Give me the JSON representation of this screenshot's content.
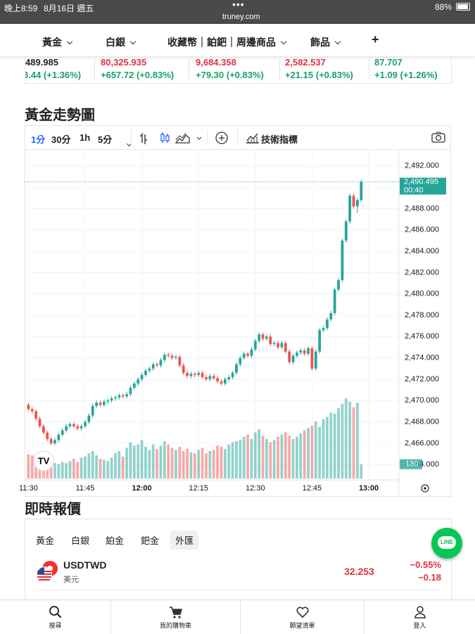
{
  "status_bar": {
    "time": "晚上8:59",
    "date": "8月16日 週五",
    "url": "truney.com",
    "battery": "88%"
  },
  "nav": [
    "黃金",
    "白銀",
    "收藏幣｜鉑鈀｜周邊商品",
    "飾品",
    "+"
  ],
  "tickers": [
    {
      "price": "489.985",
      "change": "3.44 (+1.36%)"
    },
    {
      "price": "80,325.935",
      "change": "+657.72 (+0.83%)"
    },
    {
      "price": "9,684.358",
      "change": "+79.30 (+0.83%)"
    },
    {
      "price": "2,582.537",
      "change": "+21.15 (+0.83%)"
    },
    {
      "price": "87.707",
      "change": "+1.09 (+1.26%)"
    }
  ],
  "chart_title": "黃金走勢圖",
  "toolbar": {
    "intervals": [
      "1分",
      "30分",
      "1h",
      "5分"
    ],
    "indicators": "技術指標"
  },
  "chart_data": {
    "type": "candlestick",
    "x": [
      "11:30",
      "11:31",
      "11:32",
      "11:33",
      "11:34",
      "11:35",
      "11:36",
      "11:37",
      "11:38",
      "11:39",
      "11:40",
      "11:41",
      "11:42",
      "11:43",
      "11:44",
      "11:45",
      "11:46",
      "11:47",
      "11:48",
      "11:49",
      "11:50",
      "11:51",
      "11:52",
      "11:53",
      "11:54",
      "11:55",
      "11:56",
      "11:57",
      "11:58",
      "11:59",
      "12:00",
      "12:01",
      "12:02",
      "12:03",
      "12:04",
      "12:05",
      "12:06",
      "12:07",
      "12:08",
      "12:09",
      "12:10",
      "12:11",
      "12:12",
      "12:13",
      "12:14",
      "12:15",
      "12:16",
      "12:17",
      "12:18",
      "12:19",
      "12:20",
      "12:21",
      "12:22",
      "12:23",
      "12:24",
      "12:25",
      "12:26",
      "12:27",
      "12:28",
      "12:29",
      "12:30",
      "12:31",
      "12:32",
      "12:33",
      "12:34",
      "12:35",
      "12:36",
      "12:37",
      "12:38",
      "12:39",
      "12:40",
      "12:41",
      "12:42",
      "12:43",
      "12:44",
      "12:45",
      "12:46",
      "12:47",
      "12:48",
      "12:49",
      "12:50",
      "12:51",
      "12:52",
      "12:53",
      "12:54",
      "12:55",
      "12:56",
      "12:57",
      "12:58"
    ],
    "open": [
      2469.6,
      2469.2,
      2469.0,
      2468.3,
      2467.6,
      2467.0,
      2466.4,
      2466.0,
      2466.3,
      2466.8,
      2467.2,
      2467.6,
      2467.8,
      2467.6,
      2467.4,
      2467.6,
      2468.0,
      2468.6,
      2469.5,
      2469.8,
      2469.6,
      2469.9,
      2470.0,
      2470.2,
      2470.3,
      2470.5,
      2470.4,
      2470.6,
      2471.2,
      2471.6,
      2472.0,
      2472.4,
      2472.8,
      2473.0,
      2473.4,
      2473.3,
      2473.8,
      2474.3,
      2474.2,
      2474.0,
      2474.1,
      2473.3,
      2472.6,
      2472.3,
      2472.5,
      2472.4,
      2472.6,
      2472.2,
      2472.0,
      2472.3,
      2472.1,
      2471.8,
      2471.6,
      2472.0,
      2472.2,
      2472.6,
      2473.4,
      2474.0,
      2474.4,
      2474.2,
      2474.8,
      2475.6,
      2476.2,
      2475.8,
      2476.0,
      2475.3,
      2475.4,
      2475.0,
      2475.4,
      2474.6,
      2473.6,
      2474.2,
      2474.5,
      2474.7,
      2474.4,
      2474.9,
      2473.0,
      2474.6,
      2476.6,
      2476.8,
      2477.6,
      2478.2,
      2480.4,
      2481.3,
      2485.0,
      2486.8,
      2489.2,
      2488.2,
      2488.8
    ],
    "high": [
      2469.8,
      2469.4,
      2469.2,
      2468.5,
      2467.8,
      2467.2,
      2466.6,
      2466.5,
      2467.0,
      2467.4,
      2467.8,
      2468.0,
      2468.0,
      2467.8,
      2467.8,
      2468.2,
      2468.8,
      2469.7,
      2470.0,
      2470.0,
      2470.1,
      2470.2,
      2470.4,
      2470.5,
      2470.7,
      2470.7,
      2470.8,
      2471.4,
      2471.8,
      2472.2,
      2472.6,
      2473.0,
      2473.2,
      2473.6,
      2473.6,
      2474.0,
      2474.5,
      2474.5,
      2474.4,
      2474.3,
      2474.3,
      2473.5,
      2472.8,
      2472.7,
      2472.7,
      2472.8,
      2472.8,
      2472.4,
      2472.5,
      2472.5,
      2472.3,
      2472.0,
      2472.2,
      2472.4,
      2472.8,
      2473.6,
      2474.2,
      2474.6,
      2474.6,
      2475.0,
      2475.8,
      2476.4,
      2476.4,
      2476.2,
      2476.2,
      2475.6,
      2475.6,
      2475.6,
      2475.6,
      2474.8,
      2474.4,
      2474.7,
      2474.9,
      2474.9,
      2475.1,
      2475.1,
      2474.8,
      2476.8,
      2477.0,
      2477.8,
      2478.4,
      2480.6,
      2481.5,
      2485.2,
      2487.0,
      2489.4,
      2489.4,
      2489.0,
      2490.7
    ],
    "low": [
      2469.0,
      2468.8,
      2468.1,
      2467.4,
      2466.8,
      2466.2,
      2465.8,
      2465.8,
      2466.1,
      2466.6,
      2467.0,
      2467.4,
      2467.4,
      2467.2,
      2467.2,
      2467.4,
      2467.8,
      2468.4,
      2469.3,
      2469.4,
      2469.4,
      2469.7,
      2469.8,
      2470.0,
      2470.1,
      2470.2,
      2470.2,
      2470.4,
      2471.0,
      2471.4,
      2471.8,
      2472.2,
      2472.6,
      2472.8,
      2473.1,
      2473.1,
      2473.6,
      2474.0,
      2473.8,
      2473.8,
      2473.1,
      2472.4,
      2472.1,
      2472.1,
      2472.2,
      2472.2,
      2472.0,
      2471.8,
      2471.8,
      2471.9,
      2471.6,
      2471.4,
      2471.4,
      2471.8,
      2472.0,
      2472.4,
      2473.2,
      2473.8,
      2474.0,
      2474.0,
      2474.6,
      2475.4,
      2475.6,
      2475.6,
      2475.1,
      2475.1,
      2474.8,
      2474.8,
      2474.4,
      2473.4,
      2473.4,
      2474.0,
      2474.3,
      2474.2,
      2474.2,
      2472.8,
      2472.8,
      2474.4,
      2476.4,
      2476.6,
      2477.4,
      2478.0,
      2480.2,
      2481.1,
      2484.8,
      2486.6,
      2488.0,
      2487.6,
      2488.6
    ],
    "close": [
      2469.2,
      2469.0,
      2468.3,
      2467.6,
      2467.0,
      2466.4,
      2466.0,
      2466.3,
      2466.8,
      2467.2,
      2467.6,
      2467.8,
      2467.6,
      2467.4,
      2467.6,
      2468.0,
      2468.6,
      2469.5,
      2469.8,
      2469.6,
      2469.9,
      2470.0,
      2470.2,
      2470.3,
      2470.5,
      2470.4,
      2470.6,
      2471.2,
      2471.6,
      2472.0,
      2472.4,
      2472.8,
      2473.0,
      2473.4,
      2473.3,
      2473.8,
      2474.3,
      2474.2,
      2474.0,
      2474.1,
      2473.3,
      2472.6,
      2472.3,
      2472.5,
      2472.4,
      2472.6,
      2472.2,
      2472.0,
      2472.3,
      2472.1,
      2471.8,
      2471.6,
      2472.0,
      2472.2,
      2472.6,
      2473.4,
      2474.0,
      2474.4,
      2474.2,
      2474.8,
      2475.6,
      2476.2,
      2475.8,
      2476.0,
      2475.3,
      2475.4,
      2475.0,
      2475.4,
      2474.6,
      2473.6,
      2474.2,
      2474.5,
      2474.7,
      2474.4,
      2474.9,
      2473.0,
      2474.6,
      2476.6,
      2476.8,
      2477.6,
      2478.2,
      2480.4,
      2481.3,
      2485.0,
      2486.8,
      2489.2,
      2488.2,
      2488.8,
      2490.5
    ],
    "volume": [
      220,
      210,
      180,
      160,
      150,
      190,
      170,
      140,
      130,
      150,
      140,
      160,
      180,
      150,
      190,
      200,
      230,
      250,
      210,
      180,
      170,
      160,
      190,
      230,
      250,
      200,
      280,
      330,
      300,
      310,
      350,
      290,
      260,
      310,
      270,
      300,
      340,
      310,
      280,
      260,
      290,
      250,
      270,
      240,
      230,
      260,
      280,
      230,
      250,
      260,
      300,
      290,
      270,
      310,
      330,
      340,
      350,
      380,
      400,
      360,
      420,
      450,
      390,
      360,
      330,
      350,
      380,
      400,
      420,
      390,
      360,
      380,
      410,
      440,
      460,
      480,
      520,
      470,
      540,
      560,
      600,
      590,
      640,
      680,
      730,
      700,
      650,
      690,
      130
    ],
    "xlim": [
      "11:29",
      "13:08"
    ],
    "xticks": [
      "11:30",
      "11:45",
      "12:00",
      "12:15",
      "12:30",
      "12:45",
      "13:00"
    ],
    "ylim": [
      2462.7,
      2493.3
    ],
    "yticks": [
      {
        "value": 2464,
        "label": "2,464.000"
      },
      {
        "value": 2466,
        "label": "2,466.000"
      },
      {
        "value": 2468,
        "label": "2,468.000"
      },
      {
        "value": 2470,
        "label": "2,470.000"
      },
      {
        "value": 2472,
        "label": "2,472.000"
      },
      {
        "value": 2474,
        "label": "2,474.000"
      },
      {
        "value": 2476,
        "label": "2,476.000"
      },
      {
        "value": 2478,
        "label": "2,478.000"
      },
      {
        "value": 2480,
        "label": "2,480.000"
      },
      {
        "value": 2482,
        "label": "2,482.000"
      },
      {
        "value": 2484,
        "label": "2,484.000"
      },
      {
        "value": 2486,
        "label": "2,486.000"
      },
      {
        "value": 2488,
        "label": "2,488.000"
      },
      {
        "value": 2490,
        "label": "2,490.000"
      },
      {
        "value": 2492,
        "label": "2,492.000"
      }
    ],
    "volume_lim": [
      0,
      3000
    ],
    "grid": true,
    "up_color": "#26a69a",
    "down_color": "#ef5350",
    "last_price": {
      "value": 2490.495,
      "label": "2,490.495"
    },
    "countdown": "00:40"
  },
  "quotes": {
    "title": "即時報價",
    "tabs": [
      "黃金",
      "白銀",
      "鉑金",
      "鈀金",
      "外匯"
    ],
    "active_tab": "外匯",
    "rows": [
      {
        "symbol": "USDTWD",
        "name": "美元",
        "price": "32.253",
        "change_pct": "−0.55%",
        "change": "−0.18"
      }
    ]
  },
  "bottom_nav": [
    "搜尋",
    "我的購物車",
    "願望清單",
    "登入"
  ],
  "line_button": "LINE"
}
